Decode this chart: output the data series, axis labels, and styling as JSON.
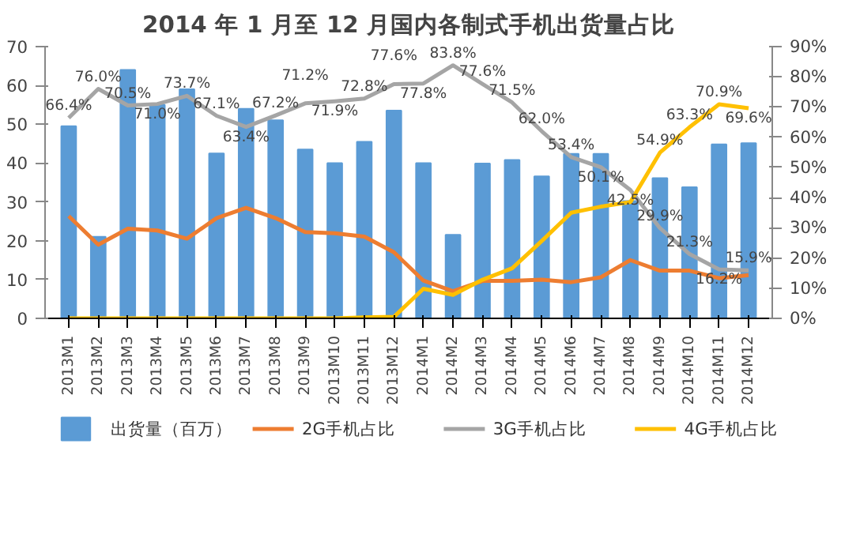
{
  "chart_data": {
    "type": "bar",
    "title": "2014 年 1 月至 12 月国内各制式手机出货量占比",
    "categories": [
      "2013M1",
      "2013M2",
      "2013M3",
      "2013M4",
      "2013M5",
      "2013M6",
      "2013M7",
      "2013M8",
      "2013M9",
      "2013M10",
      "2013M11",
      "2013M12",
      "2014M1",
      "2014M2",
      "2014M3",
      "2014M4",
      "2014M5",
      "2014M6",
      "2014M7",
      "2014M8",
      "2014M9",
      "2014M10",
      "2014M11",
      "2014M12"
    ],
    "series": [
      {
        "name": "出货量（百万）",
        "color": "#5b9bd5",
        "values": [
          49.5,
          21,
          64,
          55,
          59,
          42.5,
          54,
          51,
          43.5,
          40,
          45.5,
          53.5,
          40,
          21.5,
          39.9,
          40.8,
          36.6,
          42.4,
          42.4,
          30.2,
          36.1,
          33.8,
          44.8,
          45.1
        ]
      },
      {
        "name": "2G手机占比",
        "type": "line",
        "axis": "y2",
        "color": "#ed7d31",
        "values": [
          33.9,
          24.4,
          29.7,
          29.1,
          26.4,
          33.2,
          36.6,
          33.2,
          28.6,
          28.2,
          27.1,
          21.9,
          12.5,
          9,
          12.4,
          12.4,
          12.8,
          12,
          13.6,
          19.3,
          15.8,
          15.8,
          13.3,
          14.3
        ]
      },
      {
        "name": "3G手机占比",
        "type": "line",
        "axis": "y2",
        "color": "#a5a5a5",
        "values": [
          66.4,
          76.0,
          70.5,
          71.0,
          73.7,
          67.1,
          63.4,
          67.2,
          71.2,
          71.9,
          72.8,
          77.6,
          77.8,
          83.8,
          77.6,
          71.5,
          62.0,
          53.4,
          50.1,
          42.5,
          29.9,
          21.3,
          16.2,
          15.9
        ],
        "value_labels": [
          "66.4%",
          "76.0%",
          "70.5%",
          "71.0%",
          "73.7%",
          "67.1%",
          "63.4%",
          "67.2%",
          "71.2%",
          "71.9%",
          "72.8%",
          "77.6%",
          "77.8%",
          "83.8%",
          "77.6%",
          "71.5%",
          "62.0%",
          "53.4%",
          "50.1%",
          "42.5%",
          "29.9%",
          "21.3%",
          "16.2%",
          "15.9%"
        ]
      },
      {
        "name": "4G手机占比",
        "type": "line",
        "axis": "y2",
        "color": "#ffc000",
        "values": [
          0,
          0,
          0,
          0,
          0,
          0,
          0,
          0,
          0,
          0,
          0.3,
          0.5,
          9.8,
          7.8,
          12.8,
          16.6,
          25.6,
          35,
          37,
          38.5,
          54.9,
          63.3,
          70.9,
          69.6
        ],
        "value_labels": [
          null,
          null,
          null,
          null,
          null,
          null,
          null,
          null,
          null,
          null,
          null,
          null,
          null,
          null,
          null,
          null,
          null,
          null,
          null,
          null,
          "54.9%",
          "63.3%",
          "70.9%",
          "69.6%"
        ]
      }
    ],
    "ylim": [
      0,
      70
    ],
    "yticks": [
      0,
      10,
      20,
      30,
      40,
      50,
      60,
      70
    ],
    "y2lim": [
      0,
      90
    ],
    "y2ticks": [
      {
        "value": 0,
        "label": "0%"
      },
      {
        "value": 10,
        "label": "10%"
      },
      {
        "value": 20,
        "label": "20%"
      },
      {
        "value": 30,
        "label": "30%"
      },
      {
        "value": 40,
        "label": "40%"
      },
      {
        "value": 50,
        "label": "50%"
      },
      {
        "value": 60,
        "label": "60%"
      },
      {
        "value": 70,
        "label": "70%"
      },
      {
        "value": 80,
        "label": "80%"
      },
      {
        "value": 90,
        "label": "90%"
      }
    ],
    "grid": false,
    "legend": "bottom"
  }
}
